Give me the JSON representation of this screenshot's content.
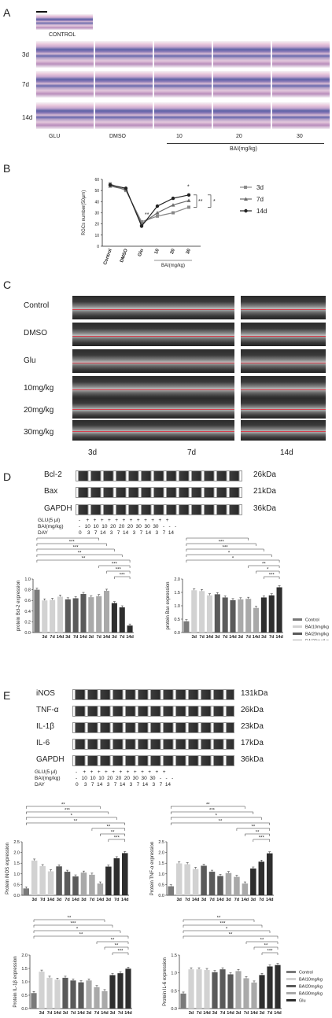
{
  "panels": {
    "A": {
      "letter": "A",
      "control_label": "CONTROL",
      "rows": [
        "3d",
        "7d",
        "14d"
      ],
      "cols": [
        "GLU",
        "DMSO",
        "10",
        "20",
        "30"
      ],
      "bai_label": "BAI(mg/kg)"
    },
    "B": {
      "letter": "B",
      "ylabel": "RGCs number(50μm)",
      "categories": [
        "Control",
        "DMSO",
        "Glu",
        "10",
        "20",
        "30"
      ],
      "legend": [
        "3d",
        "7d",
        "14d"
      ],
      "xlabel_group": "BAI(mg/kg)",
      "sig": [
        "**",
        "*",
        "**",
        "*"
      ]
    },
    "C": {
      "letter": "C",
      "rows": [
        "Control",
        "DMSO",
        "Glu",
        "10mg/kg",
        "20mg/kg",
        "30mg/kg"
      ],
      "cols": [
        "3d",
        "7d",
        "14d"
      ]
    },
    "D": {
      "letter": "D",
      "bands": [
        "Bcl-2",
        "Bax",
        "GAPDH"
      ],
      "kda": [
        "26kDa",
        "21kDa",
        "36kDa"
      ],
      "cond_labels": [
        "GLU(5 μl)",
        "BAI(mg/kg)",
        "DAY"
      ],
      "cond_rows": [
        "-    +   +   +   +   +   +   +   +   +   +   +   +",
        "-   10  10  10  20  20  20  30  30  30   -   -   -",
        "0    3   7  14   3   7  14   3   7  14   3   7  14"
      ]
    },
    "E": {
      "letter": "E",
      "bands": [
        "iNOS",
        "TNF-α",
        "IL-1β",
        "IL-6",
        "GAPDH"
      ],
      "kda": [
        "131kDa",
        "26kDa",
        "23kDa",
        "17kDa",
        "36kDa"
      ],
      "cond_labels": [
        "GLU(5 μl)",
        "BAI(mg/kg)",
        "DAY"
      ],
      "cond_rows": [
        "-    +   +   +   +   +   +   +   +   +   +   +   +",
        "-   10  10  10  20  20  20  30  30  30   -   -   -",
        "0    3   7  14   3   7  14   3   7  14   3   7  14"
      ]
    },
    "bar_legend": [
      "Control",
      "BAI10mg/kg",
      "BAI20mg/kg",
      "BAI30mg/kg",
      "Glu"
    ],
    "colors": {
      "control": "#7a7a7a",
      "bai10": "#d2d2d2",
      "bai20": "#5a5a5a",
      "bai30": "#a9a9a9",
      "glu": "#2e2e2e"
    }
  },
  "chart_data": [
    {
      "type": "line",
      "x": [
        "Control",
        "DMSO",
        "Glu",
        "10",
        "20",
        "30"
      ],
      "ylabel": "RGCs number(50μm)",
      "ylim": [
        0,
        60
      ],
      "series": [
        {
          "name": "3d",
          "values": [
            56,
            50,
            22,
            27,
            30,
            35
          ]
        },
        {
          "name": "7d",
          "values": [
            54,
            51,
            20,
            30,
            37,
            41
          ]
        },
        {
          "name": "14d",
          "values": [
            55,
            52,
            18,
            36,
            43,
            46
          ]
        }
      ]
    },
    {
      "type": "bar",
      "ylabel": "protein Bcl-2 expression",
      "ylim": [
        0,
        1.0
      ],
      "yticks": [
        "0.0",
        "0.2",
        "0.4",
        "0.6",
        "0.8",
        "1.0"
      ],
      "tick_labels": [
        "3d",
        "7d",
        "14d",
        "3d",
        "7d",
        "14d",
        "3d",
        "7d",
        "14d",
        "3d",
        "7d",
        "14d"
      ],
      "values": [
        0.8,
        0.6,
        0.61,
        0.67,
        0.62,
        0.64,
        0.72,
        0.66,
        0.68,
        0.78,
        0.55,
        0.47,
        0.13
      ],
      "groups": [
        "control",
        "bai10",
        "bai10",
        "bai10",
        "bai20",
        "bai20",
        "bai20",
        "bai30",
        "bai30",
        "bai30",
        "glu",
        "glu",
        "glu"
      ]
    },
    {
      "type": "bar",
      "ylabel": "protein Bax expression",
      "ylim": [
        0,
        2.0
      ],
      "yticks": [
        "0.0",
        "0.5",
        "1.0",
        "1.5",
        "2.0"
      ],
      "tick_labels": [
        "3d",
        "7d",
        "14d",
        "3d",
        "7d",
        "14d",
        "3d",
        "7d",
        "14d",
        "3d",
        "7d",
        "14d"
      ],
      "values": [
        0.42,
        1.58,
        1.55,
        1.39,
        1.43,
        1.31,
        1.21,
        1.24,
        1.26,
        0.92,
        1.31,
        1.39,
        1.69
      ],
      "groups": [
        "control",
        "bai10",
        "bai10",
        "bai10",
        "bai20",
        "bai20",
        "bai20",
        "bai30",
        "bai30",
        "bai30",
        "glu",
        "glu",
        "glu"
      ]
    },
    {
      "type": "bar",
      "ylabel": "Protein iNOS expression",
      "ylim": [
        0,
        2.5
      ],
      "yticks": [
        "0.0",
        "0.5",
        "1.0",
        "1.5",
        "2.0",
        "2.5"
      ],
      "tick_labels": [
        "3d",
        "7d",
        "14d",
        "3d",
        "7d",
        "14d",
        "3d",
        "7d",
        "14d",
        "3d",
        "7d",
        "14d"
      ],
      "values": [
        0.32,
        1.62,
        1.36,
        1.12,
        1.35,
        1.1,
        0.88,
        1.06,
        0.96,
        0.55,
        1.34,
        1.73,
        1.97
      ],
      "groups": [
        "control",
        "bai10",
        "bai10",
        "bai10",
        "bai20",
        "bai20",
        "bai20",
        "bai30",
        "bai30",
        "bai30",
        "glu",
        "glu",
        "glu"
      ]
    },
    {
      "type": "bar",
      "ylabel": "Protein TNF-α expression",
      "ylim": [
        0,
        2.5
      ],
      "yticks": [
        "0.0",
        "0.5",
        "1.0",
        "1.5",
        "2.0",
        "2.5"
      ],
      "tick_labels": [
        "3d",
        "7d",
        "14d",
        "3d",
        "7d",
        "14d",
        "3d",
        "7d",
        "14d",
        "3d",
        "7d",
        "14d"
      ],
      "values": [
        0.42,
        1.49,
        1.45,
        1.23,
        1.38,
        1.1,
        0.9,
        1.04,
        0.86,
        0.55,
        1.25,
        1.57,
        1.96
      ],
      "groups": [
        "control",
        "bai10",
        "bai10",
        "bai10",
        "bai20",
        "bai20",
        "bai20",
        "bai30",
        "bai30",
        "bai30",
        "glu",
        "glu",
        "glu"
      ]
    },
    {
      "type": "bar",
      "ylabel": "Protein IL-1β expression",
      "ylim": [
        0,
        2.0
      ],
      "yticks": [
        "0.0",
        "0.5",
        "1.0",
        "1.5",
        "2.0"
      ],
      "tick_labels": [
        "3d",
        "7d",
        "14d",
        "3d",
        "7d",
        "14d",
        "3d",
        "7d",
        "14d",
        "3d",
        "7d",
        "14d"
      ],
      "values": [
        0.58,
        1.38,
        1.15,
        1.08,
        1.15,
        1.05,
        0.98,
        1.05,
        0.8,
        0.65,
        1.25,
        1.32,
        1.49
      ],
      "groups": [
        "control",
        "bai10",
        "bai10",
        "bai10",
        "bai20",
        "bai20",
        "bai20",
        "bai30",
        "bai30",
        "bai30",
        "glu",
        "glu",
        "glu"
      ]
    },
    {
      "type": "bar",
      "ylabel": "Protein IL-6 expression",
      "ylim": [
        0,
        1.5
      ],
      "yticks": [
        "0.0",
        "0.5",
        "1.0",
        "1.5"
      ],
      "tick_labels": [
        "3d",
        "7d",
        "14d",
        "3d",
        "7d",
        "14d",
        "3d",
        "7d",
        "14d",
        "3d",
        "7d",
        "14d"
      ],
      "values": [
        0.42,
        1.1,
        1.1,
        1.08,
        1.02,
        1.1,
        0.96,
        1.05,
        0.85,
        0.73,
        0.94,
        1.18,
        1.22
      ],
      "groups": [
        "control",
        "bai10",
        "bai10",
        "bai10",
        "bai20",
        "bai20",
        "bai20",
        "bai30",
        "bai30",
        "bai30",
        "glu",
        "glu",
        "glu"
      ]
    }
  ]
}
